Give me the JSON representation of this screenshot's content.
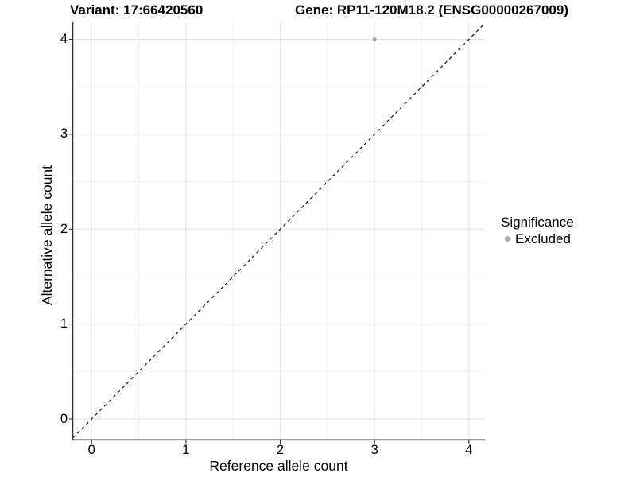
{
  "chart_data": {
    "type": "scatter",
    "title_left": "Variant: 17:66420560",
    "title_right": "Gene: RP11-120M18.2 (ENSG00000267009)",
    "xlabel": "Reference allele count",
    "ylabel": "Alternative allele count",
    "x_ticks": [
      0,
      1,
      2,
      3,
      4
    ],
    "y_ticks": [
      0,
      1,
      2,
      3,
      4
    ],
    "x_minor_ticks": [
      0.5,
      1.5,
      2.5,
      3.5
    ],
    "y_minor_ticks": [
      0.5,
      1.5,
      2.5,
      3.5
    ],
    "x_range": [
      -0.2,
      4.17
    ],
    "y_range": [
      -0.22,
      4.18
    ],
    "grid": "major+minor",
    "points": [
      {
        "x": 3,
        "y": 4,
        "significance": "Excluded"
      }
    ],
    "reference_line": {
      "type": "identity",
      "slope": 1,
      "intercept": 0,
      "style": "dashed"
    },
    "legend": {
      "title": "Significance",
      "position": "right",
      "items": [
        {
          "label": "Excluded",
          "color": "#aaaaaa"
        }
      ]
    },
    "colors": {
      "point": "#aaaaaa",
      "grid_major": "#e4e4e4",
      "grid_minor": "#f0f0f0",
      "axis_line": "#333333",
      "reference_line": "#000000",
      "background": "#ffffff",
      "text": "#000000"
    }
  }
}
